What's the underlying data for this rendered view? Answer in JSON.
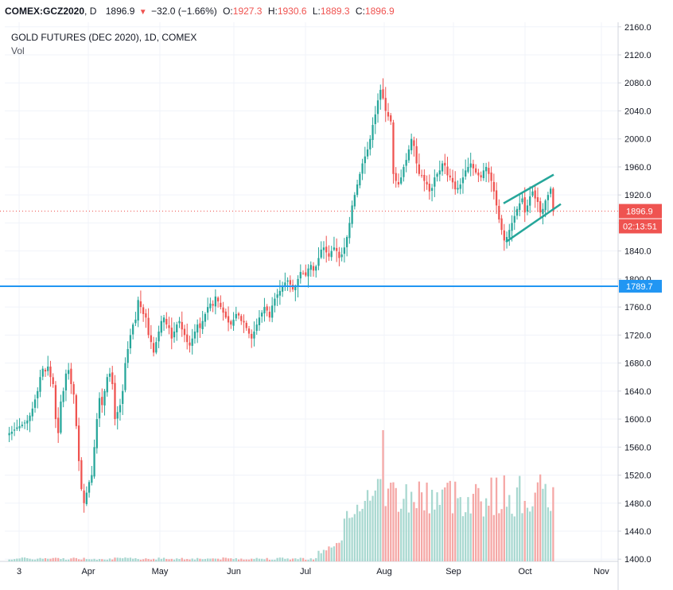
{
  "header": {
    "symbol": "COMEX:GCZ2020",
    "interval": "D",
    "last": "1896.9",
    "change": "−32.0 (−1.66%)",
    "open_label": "O:",
    "open": "1927.3",
    "high_label": "H:",
    "high": "1930.6",
    "low_label": "L:",
    "low": "1889.3",
    "close_label": "C:",
    "close": "1896.9"
  },
  "legend": {
    "title": "GOLD FUTURES (DEC 2020), 1D, COMEX",
    "volume_label": "Vol"
  },
  "price_tags": {
    "last_price": "1896.9",
    "countdown": "02:13:51",
    "horizontal_line": "1789.7"
  },
  "colors": {
    "up": "#26a69a",
    "down": "#ef5350",
    "up_volume": "#a8d8d0",
    "down_volume": "#f5a8a6",
    "horizontal_line": "#2196f3",
    "channel": "#26a69a",
    "grid": "#f0f3fa",
    "axis": "#d1d4dc"
  },
  "chart_data": {
    "type": "candlestick",
    "y_axis": {
      "ticks": [
        "2160.0",
        "2120.0",
        "2080.0",
        "2040.0",
        "2000.0",
        "1960.0",
        "1920.0",
        "1880.0",
        "1840.0",
        "1800.0",
        "1760.0",
        "1720.0",
        "1680.0",
        "1640.0",
        "1600.0",
        "1560.0",
        "1520.0",
        "1480.0",
        "1440.0",
        "1400.0"
      ],
      "range": [
        1398,
        2162
      ]
    },
    "x_axis": {
      "ticks": [
        "3",
        "Apr",
        "May",
        "Jun",
        "Jul",
        "Aug",
        "Sep",
        "Oct",
        "Nov"
      ],
      "tick_dates": [
        "2020-03-03",
        "2020-04-01",
        "2020-05-01",
        "2020-06-01",
        "2020-07-01",
        "2020-08-03",
        "2020-09-01",
        "2020-10-01",
        "2020-11-02"
      ],
      "range": [
        "2020-02-26",
        "2020-11-09"
      ]
    },
    "horizontal_line": 1789.7,
    "last_price": 1896.9,
    "channel": {
      "upper": [
        [
          "2020-09-22",
          1908
        ],
        [
          "2020-10-13",
          1949
        ]
      ],
      "lower": [
        [
          "2020-09-23",
          1853
        ],
        [
          "2020-10-16",
          1907
        ]
      ]
    },
    "closes": [
      1580,
      1582,
      1585,
      1588,
      1590,
      1592,
      1595,
      1598,
      1605,
      1615,
      1628,
      1640,
      1660,
      1672,
      1668,
      1675,
      1660,
      1650,
      1600,
      1580,
      1625,
      1640,
      1665,
      1670,
      1650,
      1635,
      1590,
      1540,
      1500,
      1480,
      1495,
      1510,
      1520,
      1560,
      1600,
      1630,
      1620,
      1640,
      1660,
      1665,
      1650,
      1600,
      1610,
      1620,
      1640,
      1680,
      1700,
      1720,
      1735,
      1742,
      1770,
      1760,
      1750,
      1745,
      1720,
      1710,
      1695,
      1710,
      1725,
      1740,
      1745,
      1735,
      1730,
      1715,
      1725,
      1735,
      1740,
      1728,
      1720,
      1710,
      1705,
      1715,
      1725,
      1735,
      1730,
      1740,
      1750,
      1760,
      1765,
      1762,
      1775,
      1768,
      1760,
      1752,
      1745,
      1738,
      1735,
      1742,
      1750,
      1748,
      1740,
      1738,
      1730,
      1722,
      1715,
      1725,
      1735,
      1745,
      1752,
      1760,
      1755,
      1745,
      1762,
      1772,
      1778,
      1783,
      1790,
      1795,
      1798,
      1792,
      1785,
      1790,
      1800,
      1810,
      1808,
      1805,
      1815,
      1820,
      1812,
      1818,
      1830,
      1842,
      1845,
      1838,
      1832,
      1840,
      1845,
      1840,
      1830,
      1835,
      1845,
      1860,
      1880,
      1905,
      1920,
      1935,
      1950,
      1965,
      1975,
      1985,
      2000,
      2020,
      2035,
      2055,
      2070,
      2058,
      2040,
      2032,
      2025,
      1950,
      1940,
      1935,
      1945,
      1960,
      1970,
      1985,
      2000,
      1990,
      1965,
      1950,
      1948,
      1940,
      1935,
      1925,
      1930,
      1945,
      1950,
      1955,
      1965,
      1962,
      1948,
      1945,
      1938,
      1928,
      1930,
      1935,
      1945,
      1955,
      1960,
      1965,
      1958,
      1952,
      1948,
      1945,
      1955,
      1960,
      1950,
      1940,
      1925,
      1905,
      1885,
      1870,
      1855,
      1860,
      1870,
      1880,
      1890,
      1900,
      1908,
      1915,
      1895,
      1905,
      1918,
      1925,
      1915,
      1910,
      1895,
      1900,
      1912,
      1920,
      1929,
      1896.9
    ],
    "volume_note": "Volume bars rise sharply from July onward (peak near early August)."
  }
}
